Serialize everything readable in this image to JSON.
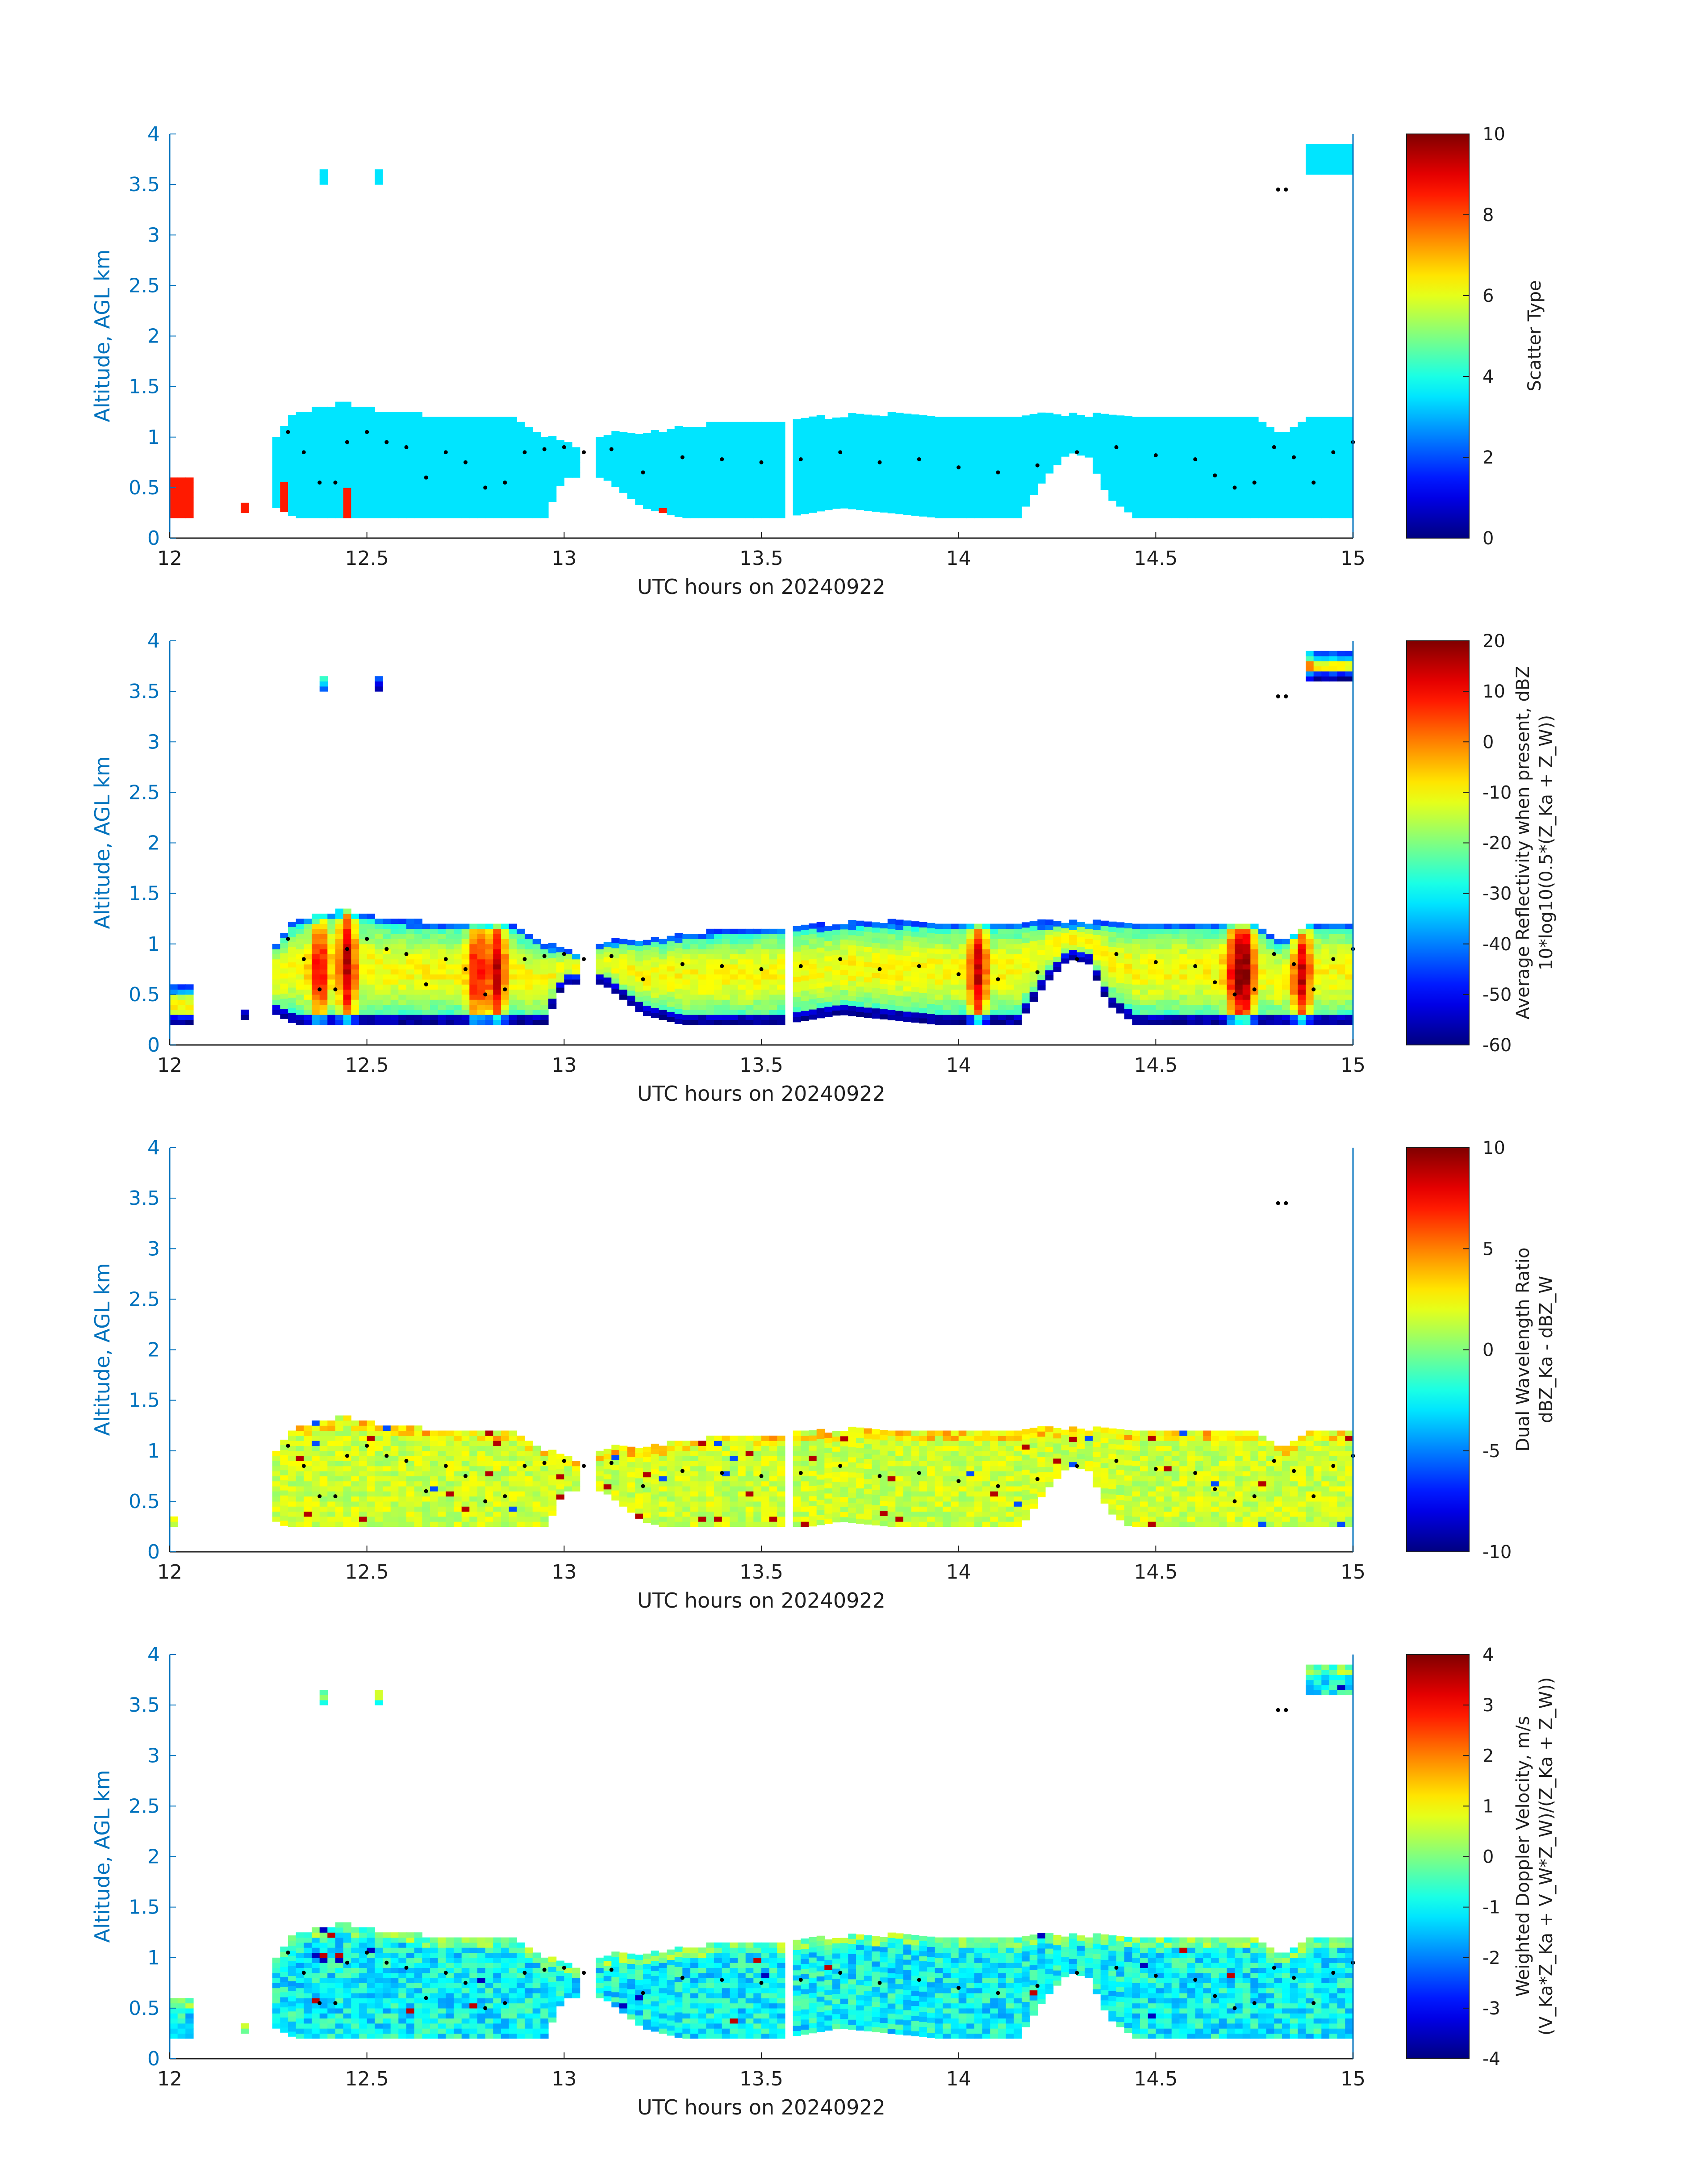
{
  "colors": {
    "axis_blue": "#0072bd",
    "text_dark": "#1f1f1f",
    "scatter_cyan": "#40ffe0",
    "scatter_red": "#ff3a10"
  },
  "chart_data": [
    {
      "type": "heatmap",
      "ylabel": "Altitude, AGL km",
      "xlabel": "UTC hours on 20240922",
      "xlim": [
        12,
        15
      ],
      "ylim": [
        0,
        4
      ],
      "xticks": [
        "12",
        "12.5",
        "13",
        "13.5",
        "14",
        "14.5",
        "15"
      ],
      "yticks": [
        "0",
        "0.5",
        "1",
        "1.5",
        "2",
        "2.5",
        "3",
        "3.5",
        "4"
      ],
      "colorbar": {
        "label_lines": [
          "Scatter Type"
        ],
        "range": [
          0,
          10
        ],
        "ticks": [
          "0",
          "2",
          "4",
          "6",
          "8",
          "10"
        ]
      },
      "field": "scatter_type",
      "typical_value": 3.5,
      "outlier_value": 8.5
    },
    {
      "type": "heatmap",
      "ylabel": "Altitude, AGL km",
      "xlabel": "UTC hours on 20240922",
      "xlim": [
        12,
        15
      ],
      "ylim": [
        0,
        4
      ],
      "xticks": [
        "12",
        "12.5",
        "13",
        "13.5",
        "14",
        "14.5",
        "15"
      ],
      "yticks": [
        "0",
        "0.5",
        "1",
        "1.5",
        "2",
        "2.5",
        "3",
        "3.5",
        "4"
      ],
      "colorbar": {
        "label_lines": [
          "Average Reflectivity when present, dBZ",
          "10*log10(0.5*(Z_Ka + Z_W))"
        ],
        "range": [
          -60,
          20
        ],
        "ticks": [
          "-60",
          "-50",
          "-40",
          "-30",
          "-20",
          "-10",
          "0",
          "10",
          "20"
        ]
      },
      "field": "reflectivity_dbz",
      "core_cells_hours": [
        12.38,
        12.45,
        12.78,
        12.83,
        14.05,
        14.7,
        14.73,
        14.87
      ]
    },
    {
      "type": "heatmap",
      "ylabel": "Altitude, AGL km",
      "xlabel": "UTC hours on 20240922",
      "xlim": [
        12,
        15
      ],
      "ylim": [
        0,
        4
      ],
      "xticks": [
        "12",
        "12.5",
        "13",
        "13.5",
        "14",
        "14.5",
        "15"
      ],
      "yticks": [
        "0",
        "0.5",
        "1",
        "1.5",
        "2",
        "2.5",
        "3",
        "3.5",
        "4"
      ],
      "colorbar": {
        "label_lines": [
          "Dual Wavelength Ratio",
          "dBZ_Ka - dBZ_W"
        ],
        "range": [
          -10,
          10
        ],
        "ticks": [
          "-10",
          "-5",
          "0",
          "5",
          "10"
        ]
      },
      "field": "dual_wavelength_ratio_db"
    },
    {
      "type": "heatmap",
      "ylabel": "Altitude, AGL km",
      "xlabel": "UTC hours on 20240922",
      "xlim": [
        12,
        15
      ],
      "ylim": [
        0,
        4
      ],
      "xticks": [
        "12",
        "12.5",
        "13",
        "13.5",
        "14",
        "14.5",
        "15"
      ],
      "yticks": [
        "0",
        "0.5",
        "1",
        "1.5",
        "2",
        "2.5",
        "3",
        "3.5",
        "4"
      ],
      "colorbar": {
        "label_lines": [
          "Weighted Doppler Velocity, m/s",
          "(V_Ka*Z_Ka + V_W*Z_W)/(Z_Ka + Z_W))"
        ],
        "range": [
          -4,
          4
        ],
        "ticks": [
          "-4",
          "-3",
          "-2",
          "-1",
          "0",
          "1",
          "2",
          "3",
          "4"
        ]
      },
      "field": "doppler_velocity_ms"
    }
  ],
  "shared": {
    "cloud_top_km": [
      [
        12.27,
        1.0
      ],
      [
        12.31,
        1.2
      ],
      [
        12.45,
        1.32
      ],
      [
        12.55,
        1.22
      ],
      [
        12.65,
        1.2
      ],
      [
        12.75,
        1.2
      ],
      [
        12.85,
        1.2
      ],
      [
        12.95,
        1.0
      ],
      [
        13.05,
        0.85
      ],
      [
        13.1,
        1.0
      ],
      [
        13.25,
        1.05
      ],
      [
        13.35,
        1.1
      ],
      [
        13.55,
        1.15
      ],
      [
        13.75,
        1.2
      ],
      [
        14.0,
        1.2
      ],
      [
        14.25,
        1.2
      ],
      [
        14.5,
        1.2
      ],
      [
        14.65,
        1.2
      ],
      [
        14.75,
        1.2
      ],
      [
        14.82,
        1.0
      ],
      [
        14.9,
        1.2
      ],
      [
        15.0,
        1.2
      ]
    ],
    "cloud_base_km": [
      [
        12.27,
        0.3
      ],
      [
        12.32,
        0.2
      ],
      [
        12.5,
        0.2
      ],
      [
        12.95,
        0.2
      ],
      [
        13.0,
        0.6
      ],
      [
        13.1,
        0.6
      ],
      [
        13.2,
        0.3
      ],
      [
        13.3,
        0.2
      ],
      [
        13.55,
        0.2
      ],
      [
        13.7,
        0.3
      ],
      [
        13.95,
        0.2
      ],
      [
        14.15,
        0.2
      ],
      [
        14.22,
        0.6
      ],
      [
        14.28,
        0.85
      ],
      [
        14.33,
        0.8
      ],
      [
        14.38,
        0.4
      ],
      [
        14.45,
        0.2
      ],
      [
        15.0,
        0.2
      ]
    ],
    "gaps_hours": [
      [
        13.05,
        13.09
      ],
      [
        13.57,
        13.58
      ]
    ],
    "low_echo_segments": [
      [
        12.0,
        12.06,
        0.2,
        0.55
      ],
      [
        12.18,
        12.21,
        0.25,
        0.35
      ]
    ],
    "upper_patches": [
      [
        12.38,
        12.4,
        3.5,
        3.6
      ],
      [
        12.52,
        12.54,
        3.5,
        3.6
      ],
      [
        14.89,
        15.0,
        3.6,
        3.85
      ]
    ],
    "lidar_cloud_base_km": [
      [
        12.3,
        1.05
      ],
      [
        12.34,
        0.85
      ],
      [
        12.38,
        0.55
      ],
      [
        12.42,
        0.55
      ],
      [
        12.45,
        0.95
      ],
      [
        12.5,
        1.05
      ],
      [
        12.55,
        0.95
      ],
      [
        12.6,
        0.9
      ],
      [
        12.65,
        0.6
      ],
      [
        12.7,
        0.85
      ],
      [
        12.75,
        0.75
      ],
      [
        12.8,
        0.5
      ],
      [
        12.85,
        0.55
      ],
      [
        12.9,
        0.85
      ],
      [
        12.95,
        0.88
      ],
      [
        13.0,
        0.9
      ],
      [
        13.05,
        0.85
      ],
      [
        13.12,
        0.88
      ],
      [
        13.2,
        0.65
      ],
      [
        13.3,
        0.8
      ],
      [
        13.4,
        0.78
      ],
      [
        13.5,
        0.75
      ],
      [
        13.6,
        0.78
      ],
      [
        13.7,
        0.85
      ],
      [
        13.8,
        0.75
      ],
      [
        13.9,
        0.78
      ],
      [
        14.0,
        0.7
      ],
      [
        14.1,
        0.65
      ],
      [
        14.2,
        0.72
      ],
      [
        14.3,
        0.85
      ],
      [
        14.4,
        0.9
      ],
      [
        14.5,
        0.82
      ],
      [
        14.6,
        0.78
      ],
      [
        14.65,
        0.62
      ],
      [
        14.7,
        0.5
      ],
      [
        14.75,
        0.55
      ],
      [
        14.8,
        0.9
      ],
      [
        14.85,
        0.8
      ],
      [
        14.9,
        0.55
      ],
      [
        14.95,
        0.85
      ],
      [
        15.0,
        0.95
      ],
      [
        14.81,
        3.45
      ],
      [
        14.83,
        3.45
      ]
    ]
  }
}
